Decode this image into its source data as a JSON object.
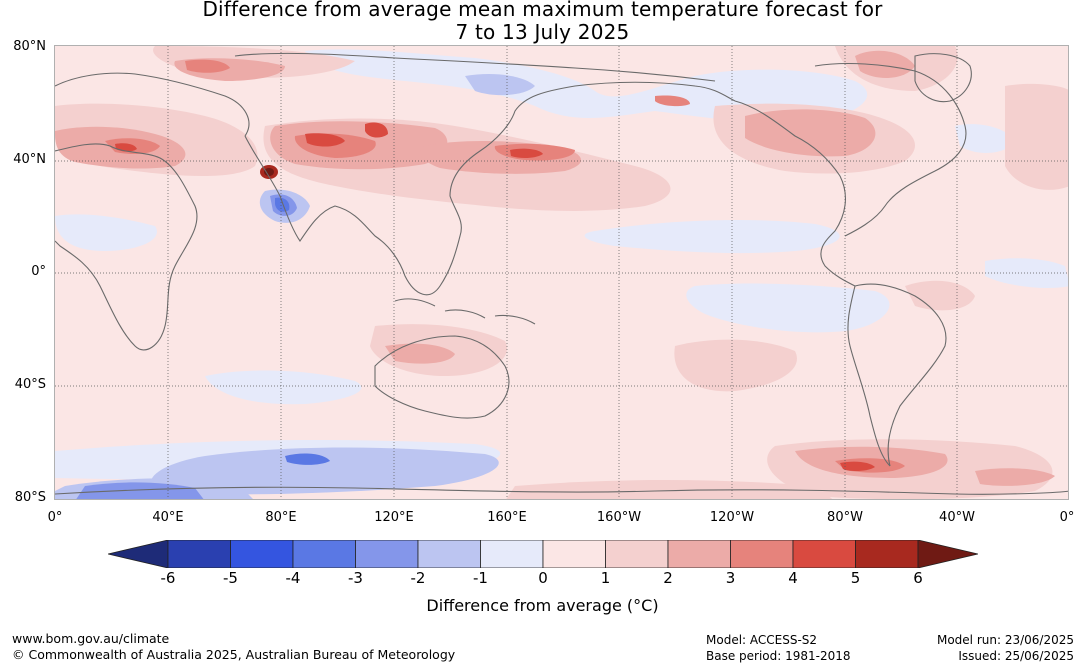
{
  "title": {
    "line1": "Difference from average mean maximum temperature forecast for",
    "line2": "7 to 13 July 2025"
  },
  "map": {
    "lat_labels": [
      "80°N",
      "40°N",
      "0°",
      "40°S",
      "80°S"
    ],
    "lon_labels": [
      "0°",
      "40°E",
      "80°E",
      "120°E",
      "160°E",
      "160°W",
      "120°W",
      "80°W",
      "40°W",
      "0°"
    ],
    "coastline_color": "#666666",
    "grid_color": "#555555"
  },
  "colorbar": {
    "ticks": [
      "-6",
      "-5",
      "-4",
      "-3",
      "-2",
      "-1",
      "0",
      "1",
      "2",
      "3",
      "4",
      "5",
      "6"
    ],
    "colors": {
      "under": "#1e2b78",
      "c_m6_m5": "#2a40b0",
      "c_m5_m4": "#3455e0",
      "c_m4_m3": "#5a78e4",
      "c_m3_m2": "#8496ea",
      "c_m2_m1": "#bcc5f1",
      "c_m1_0": "#e6eafa",
      "c_0_1": "#fbe6e5",
      "c_1_2": "#f4d0cf",
      "c_2_3": "#ecaba8",
      "c_3_4": "#e6837c",
      "c_4_5": "#d94a40",
      "c_5_6": "#a8291f",
      "over": "#6f1a14"
    },
    "label": "Difference from average (°C)"
  },
  "footer": {
    "website": "www.bom.gov.au/climate",
    "copyright": "© Commonwealth of Australia 2025, Australian Bureau of Meteorology",
    "model": "Model: ACCESS-S2",
    "base_period": "Base period: 1981-2018",
    "model_run": "Model run: 23/06/2025",
    "issued": "Issued: 25/06/2025"
  }
}
